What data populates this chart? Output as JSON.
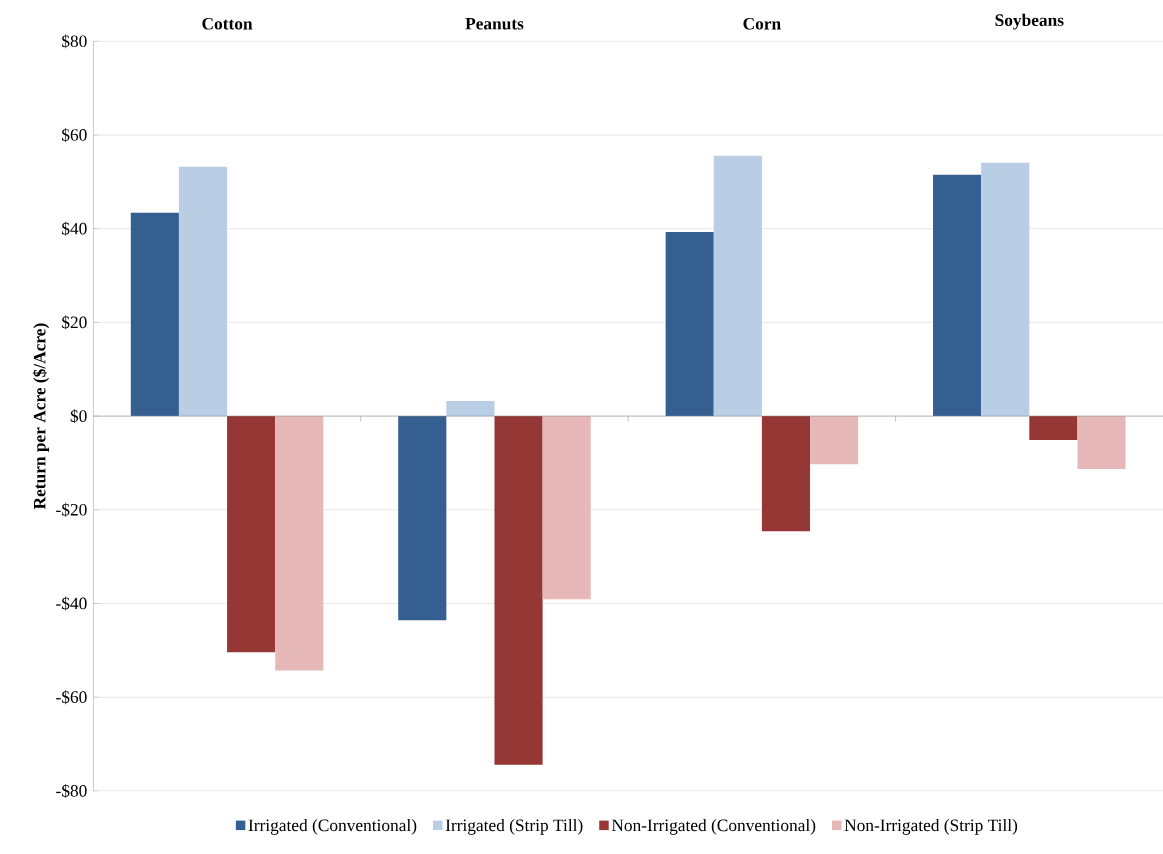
{
  "chart_data": {
    "type": "bar",
    "categories": [
      "Cotton",
      "Peanuts",
      "Corn",
      "Soybeans"
    ],
    "ylabel": "Return per Acre ($/Acre)",
    "series": [
      {
        "name": "Irrigated (Conventional)",
        "color": "#355f91",
        "values": [
          43.4,
          -43.6,
          39.3,
          51.5
        ]
      },
      {
        "name": "Irrigated (Strip Till)",
        "color": "#b9cde5",
        "values": [
          53.2,
          3.2,
          55.6,
          54.1
        ]
      },
      {
        "name": "Non-Irrigated (Conventional)",
        "color": "#953735",
        "values": [
          -50.4,
          -74.4,
          -24.6,
          -5.1
        ]
      },
      {
        "name": "Non-Irrigated (Strip Till)",
        "color": "#e6b9b8",
        "values": [
          -54.3,
          -39.1,
          -10.3,
          -11.3
        ]
      }
    ],
    "ylim": [
      -80,
      80
    ],
    "yticks": [
      {
        "value": -80,
        "label": "-$80"
      },
      {
        "value": -60,
        "label": "-$60"
      },
      {
        "value": -40,
        "label": "-$40"
      },
      {
        "value": -20,
        "label": "-$20"
      },
      {
        "value": 0,
        "label": "$0"
      },
      {
        "value": 20,
        "label": "$20"
      },
      {
        "value": 40,
        "label": "$40"
      },
      {
        "value": 60,
        "label": "$60"
      },
      {
        "value": 80,
        "label": "$80"
      }
    ],
    "grid": "y",
    "legend": "bottom"
  }
}
